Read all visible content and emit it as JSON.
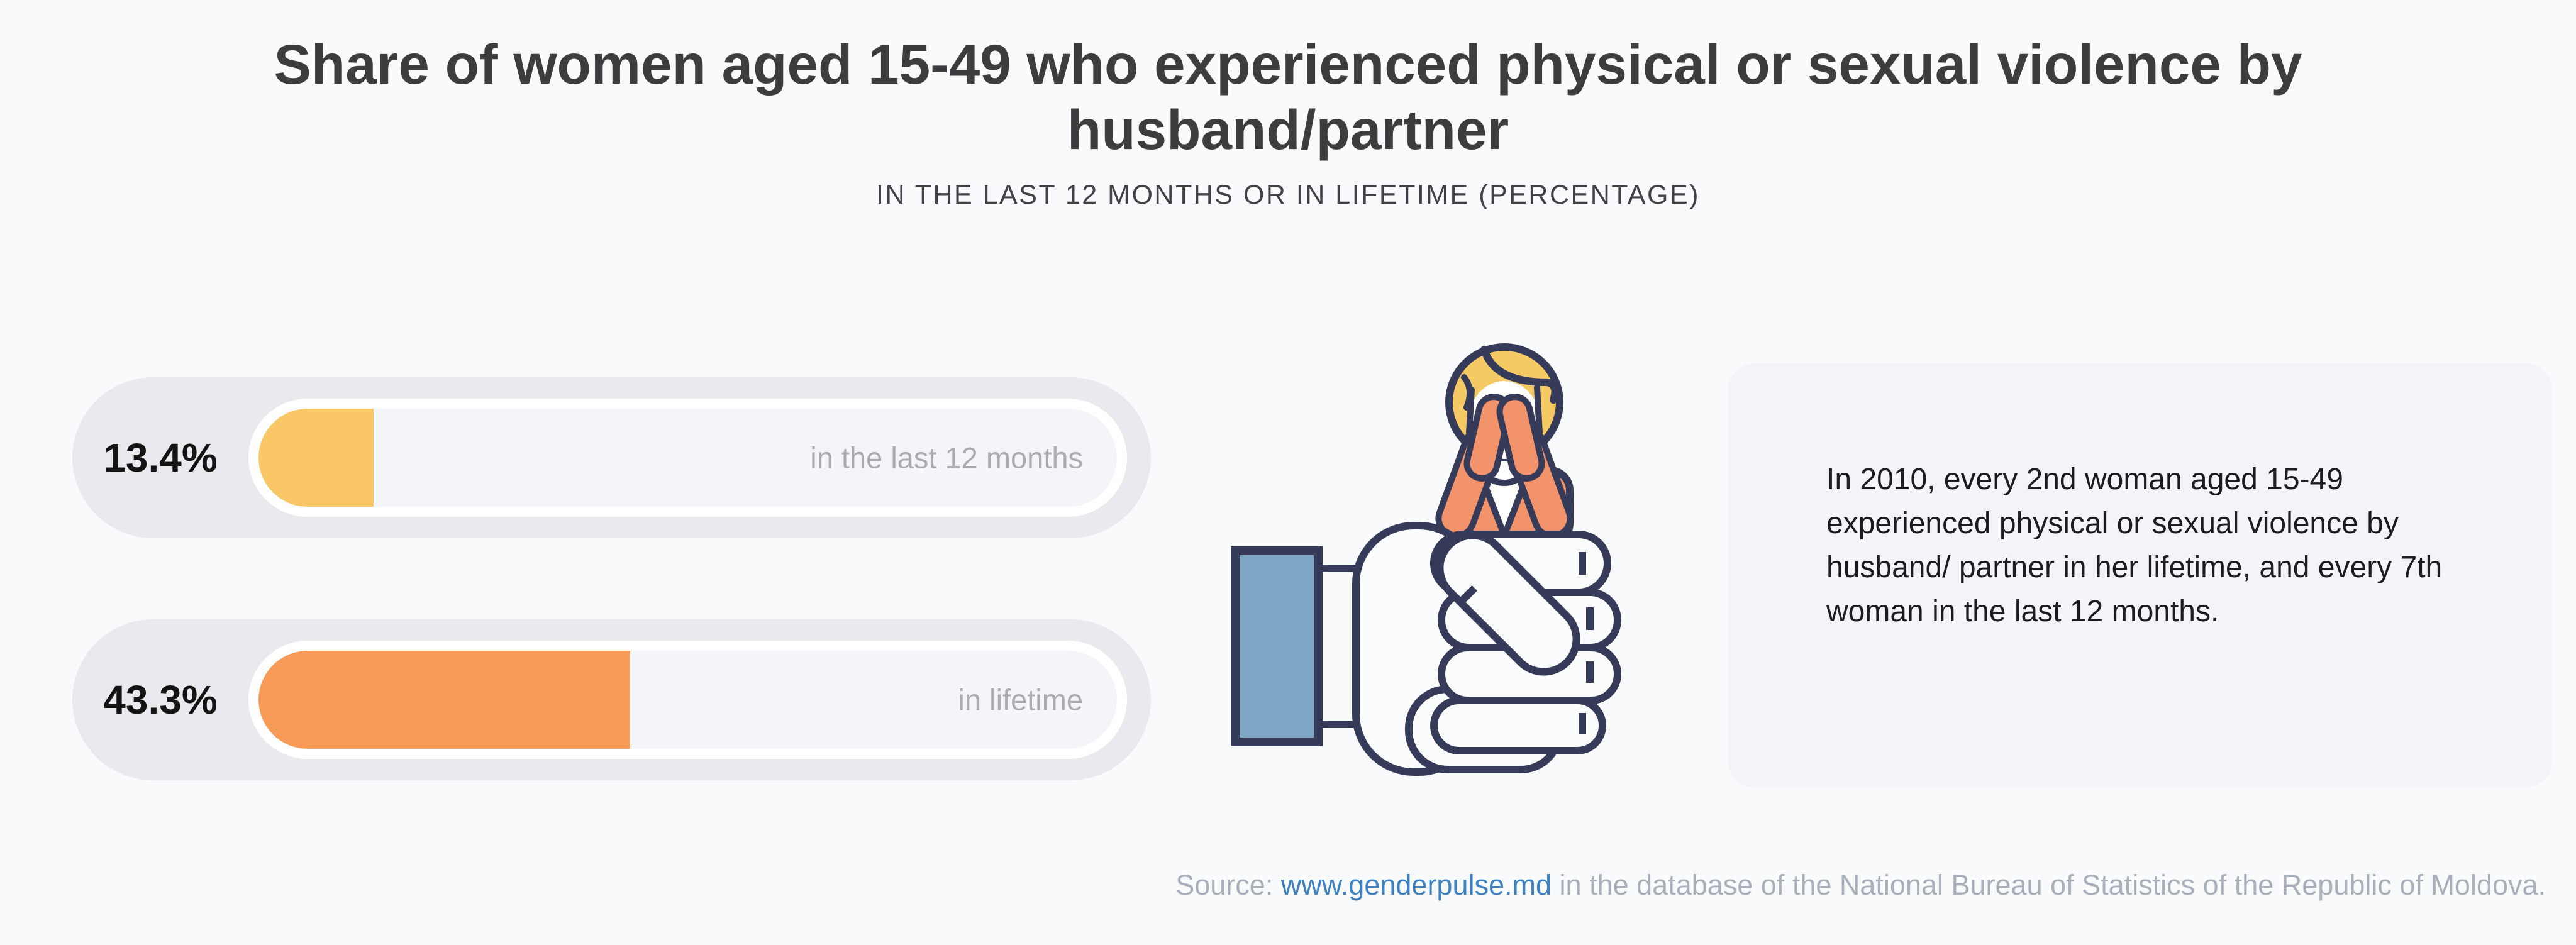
{
  "title": "Share of women aged 15-49 who experienced physical or sexual violence by husband/partner",
  "subtitle": "IN THE LAST 12 MONTHS OR IN LIFETIME (PERCENTAGE)",
  "chart_data": {
    "type": "bar",
    "orientation": "horizontal",
    "categories": [
      "in the last 12 months",
      "in lifetime"
    ],
    "values": [
      13.4,
      43.3
    ],
    "value_labels": [
      "13.4%",
      "43.3%"
    ],
    "bar_colors": [
      "#F9C765",
      "#F89B58"
    ],
    "xlim": [
      0,
      100
    ],
    "grid": false,
    "legend": false,
    "title": "Share of women aged 15-49 who experienced physical or sexual violence by husband/partner",
    "subtitle": "IN THE LAST 12 MONTHS OR IN LIFETIME (PERCENTAGE)"
  },
  "note": {
    "text": "In 2010, every 2nd woman aged 15-49 experienced physical or sexual violence by husband/ partner in her lifetime, and every 7th woman in the last 12 months."
  },
  "source": {
    "label": "Source:",
    "link_text": "www.genderpulse.md",
    "suffix": "in the database of the National Bureau of Statistics of the Republic of Moldova.",
    "link_color": "#3E81C2",
    "text_color": "#A7B0BA"
  },
  "illustration": {
    "name": "fist-gripping-crying-woman",
    "colors": {
      "outline_navy": "#363B59",
      "sleeve_blue": "#7FA5C5",
      "hair_yellow": "#F5C963",
      "clothes_orange": "#F2936C",
      "hand_fill": "#FBFCFD"
    }
  },
  "theme": {
    "background": "#F9FAFB",
    "title_color": "#3D3D40",
    "pill_bg": "#E9EAEE",
    "ring_bg": "#FFFFFF",
    "track_bg": "#F4F5F8",
    "value_color": "#141414",
    "category_color": "#A9ABAE",
    "card_bg": "#F3F4F7",
    "card_text": "#1B1C1E"
  }
}
